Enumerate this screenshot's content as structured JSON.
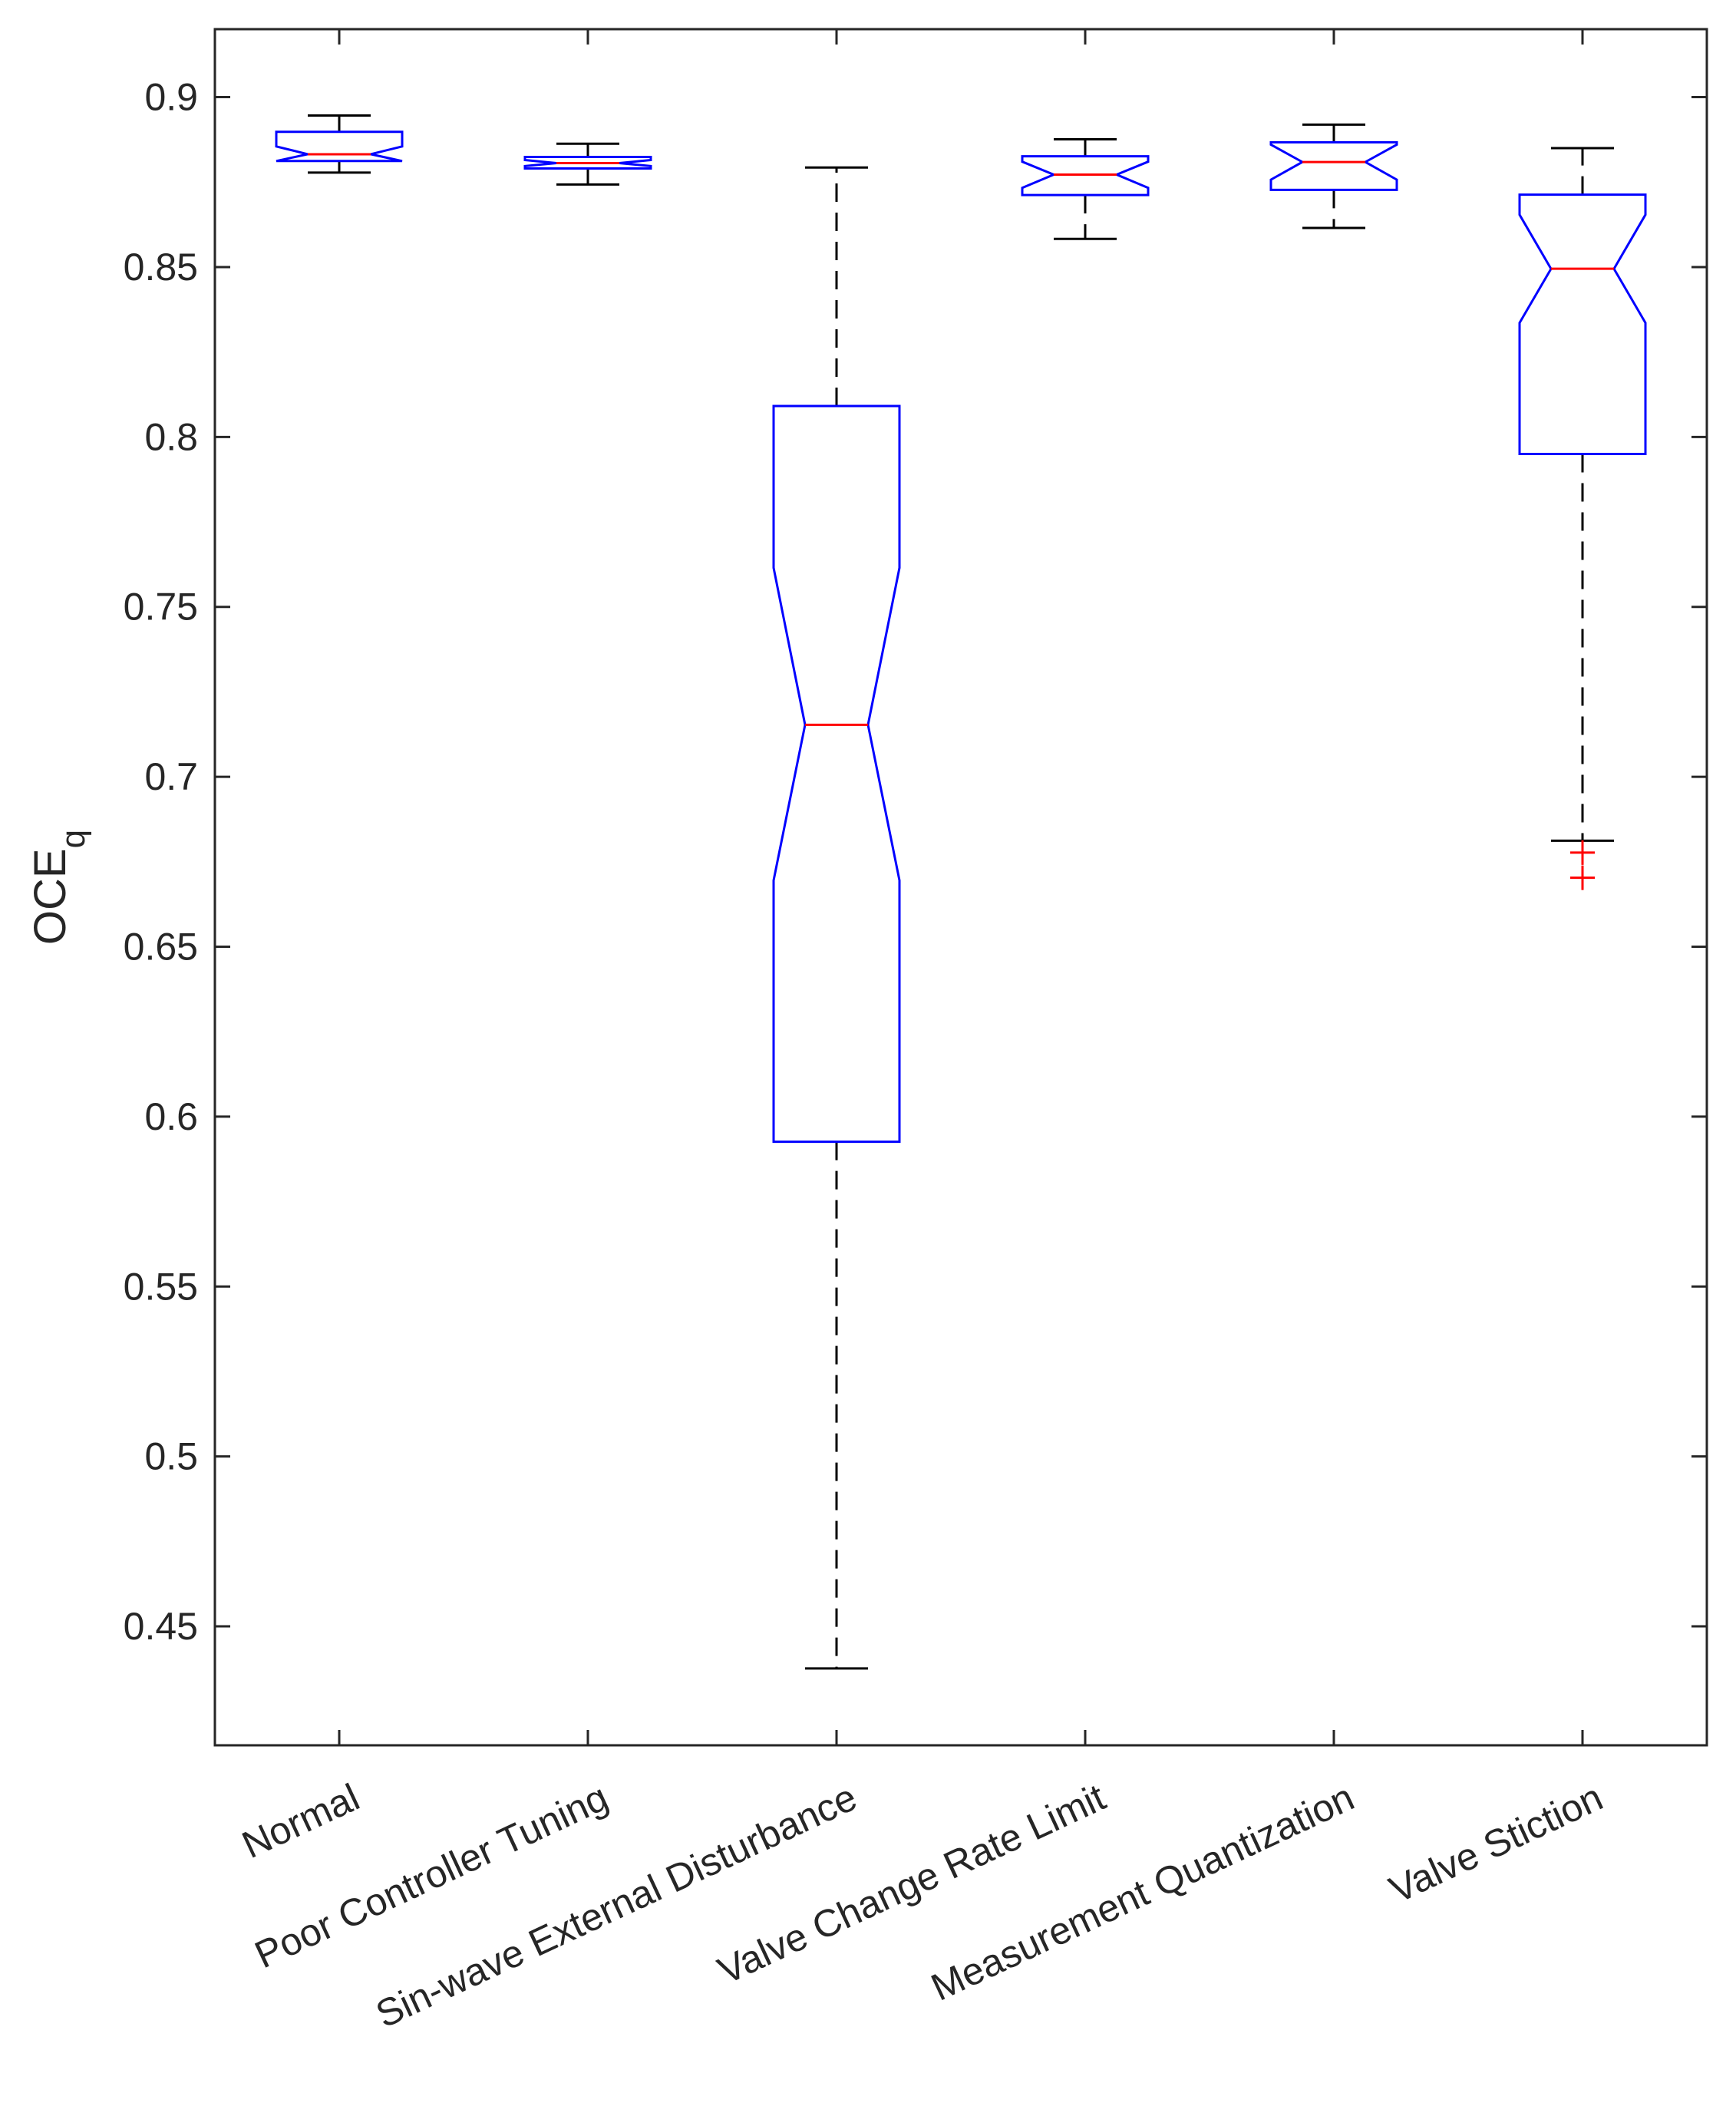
{
  "chart_data": {
    "type": "boxplot",
    "notched": true,
    "title": "",
    "xlabel": "",
    "ylabel": {
      "main": "OCE",
      "subscript": "q"
    },
    "ylim": [
      0.415,
      0.92
    ],
    "yticks": [
      0.45,
      0.5,
      0.55,
      0.6,
      0.65,
      0.7,
      0.75,
      0.8,
      0.85,
      0.9
    ],
    "ytick_labels": [
      "0.45",
      "0.5",
      "0.55",
      "0.6",
      "0.65",
      "0.7",
      "0.75",
      "0.8",
      "0.85",
      "0.9"
    ],
    "grid": false,
    "categories": [
      "Normal",
      "Poor Controller Tuning",
      "Sin-wave External Disturbance",
      "Valve Change Rate Limit",
      "Measurement Quantization",
      "Valve Stiction"
    ],
    "boxes": [
      {
        "category": "Normal",
        "whisker_low": 0.8778,
        "q1": 0.8812,
        "median": 0.8832,
        "q3": 0.8898,
        "whisker_high": 0.8946,
        "notch_low": 0.8808,
        "notch_high": 0.8855,
        "outliers": []
      },
      {
        "category": "Poor Controller Tuning",
        "whisker_low": 0.8743,
        "q1": 0.879,
        "median": 0.8806,
        "q3": 0.8824,
        "whisker_high": 0.8863,
        "notch_low": 0.8797,
        "notch_high": 0.8815,
        "outliers": []
      },
      {
        "category": "Sin-wave External Disturbance",
        "whisker_low": 0.4376,
        "q1": 0.5926,
        "median": 0.7153,
        "q3": 0.8091,
        "whisker_high": 0.8793,
        "notch_low": 0.6695,
        "notch_high": 0.7615,
        "outliers": []
      },
      {
        "category": "Valve Change Rate Limit",
        "whisker_low": 0.8583,
        "q1": 0.8712,
        "median": 0.8772,
        "q3": 0.8826,
        "whisker_high": 0.8876,
        "notch_low": 0.8733,
        "notch_high": 0.881,
        "outliers": []
      },
      {
        "category": "Measurement Quantization",
        "whisker_low": 0.8615,
        "q1": 0.8727,
        "median": 0.8809,
        "q3": 0.8867,
        "whisker_high": 0.8919,
        "notch_low": 0.8757,
        "notch_high": 0.886,
        "outliers": []
      },
      {
        "category": "Valve Stiction",
        "whisker_low": 0.6812,
        "q1": 0.795,
        "median": 0.8495,
        "q3": 0.8713,
        "whisker_high": 0.885,
        "notch_low": 0.8336,
        "notch_high": 0.8654,
        "outliers": [
          0.6777,
          0.6703
        ]
      }
    ],
    "colors": {
      "box": "#0000ff",
      "median": "#ff0000",
      "whisker": "#000000",
      "outlier": "#ff0000",
      "axis": "#262626"
    }
  }
}
